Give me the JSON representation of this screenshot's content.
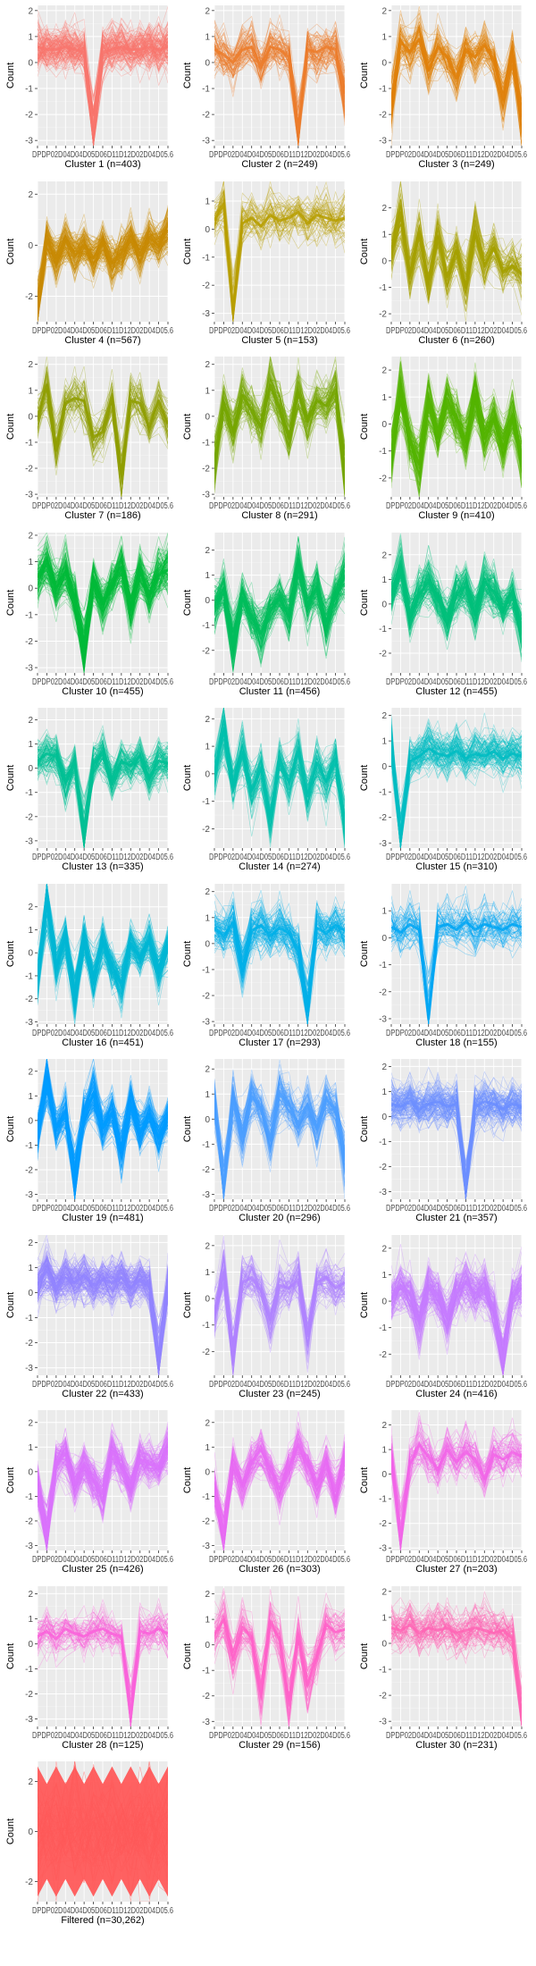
{
  "figure": {
    "ylabel": "Count",
    "x_tick_text": "DPDP02D04D04D05D06D11D12D02D04D05.6"
  },
  "chart_data": [
    {
      "type": "line",
      "title": "Cluster 1 (n=403)",
      "color": "#F8766D",
      "ylim": [
        -3.2,
        2.2
      ],
      "y_ticks": [
        -3,
        -2,
        -1,
        0,
        1,
        2
      ],
      "series_count": 403,
      "mean_profile": [
        0.6,
        0.5,
        0.5,
        0.6,
        0.5,
        0.4,
        -2.7,
        0.4,
        0.5,
        0.6,
        0.5,
        0.5,
        0.6,
        0.5,
        0.6
      ]
    },
    {
      "type": "line",
      "title": "Cluster 2 (n=249)",
      "color": "#EC7C2B",
      "ylim": [
        -3.2,
        2.2
      ],
      "y_ticks": [
        -3,
        -2,
        -1,
        0,
        1,
        2
      ],
      "series_count": 249,
      "mean_profile": [
        0.5,
        0.3,
        0.0,
        0.5,
        0.6,
        -0.2,
        0.6,
        0.5,
        0.2,
        -2.6,
        0.5,
        0.4,
        0.6,
        0.5,
        -1.2
      ]
    },
    {
      "type": "line",
      "title": "Cluster 3 (n=249)",
      "color": "#E0800A",
      "ylim": [
        -3.2,
        2.2
      ],
      "y_ticks": [
        -3,
        -2,
        -1,
        0,
        1,
        2
      ],
      "series_count": 249,
      "mean_profile": [
        -1.6,
        0.8,
        0.4,
        0.9,
        -0.3,
        0.6,
        0.2,
        -0.6,
        0.5,
        0.2,
        0.7,
        0.1,
        -1.4,
        0.3,
        -2.1
      ]
    },
    {
      "type": "line",
      "title": "Cluster 4 (n=567)",
      "color": "#C88A04",
      "ylim": [
        -3.0,
        2.5
      ],
      "y_ticks": [
        -2,
        0,
        2
      ],
      "series_count": 567,
      "mean_profile": [
        -2.6,
        0.2,
        -0.6,
        0.2,
        -0.4,
        0.0,
        -0.5,
        0.1,
        -0.7,
        -0.3,
        0.2,
        -0.4,
        0.3,
        0.0,
        0.6
      ]
    },
    {
      "type": "line",
      "title": "Cluster 5 (n=153)",
      "color": "#B79F00",
      "ylim": [
        -3.3,
        1.7
      ],
      "y_ticks": [
        -3,
        -2,
        -1,
        0,
        1
      ],
      "series_count": 153,
      "mean_profile": [
        0.3,
        0.9,
        -3.0,
        0.2,
        0.4,
        0.1,
        0.5,
        0.3,
        0.4,
        0.6,
        0.2,
        0.5,
        0.4,
        0.3,
        0.4
      ]
    },
    {
      "type": "line",
      "title": "Cluster 6 (n=260)",
      "color": "#A5A000",
      "ylim": [
        -2.3,
        3.0
      ],
      "y_ticks": [
        -2,
        -1,
        0,
        1,
        2
      ],
      "series_count": 260,
      "mean_profile": [
        0.2,
        1.8,
        -0.5,
        1.0,
        -0.8,
        0.9,
        -0.6,
        0.4,
        -1.0,
        1.1,
        -0.2,
        0.5,
        -0.4,
        -0.2,
        -0.5
      ]
    },
    {
      "type": "line",
      "title": "Cluster 7 (n=186)",
      "color": "#8F9E00",
      "ylim": [
        -3.1,
        2.3
      ],
      "y_ticks": [
        -3,
        -2,
        -1,
        0,
        1,
        2
      ],
      "series_count": 186,
      "mean_profile": [
        -0.1,
        1.2,
        -1.3,
        0.5,
        0.7,
        0.6,
        -0.8,
        -0.6,
        0.7,
        -2.3,
        0.6,
        0.5,
        -0.4,
        0.6,
        -0.3
      ]
    },
    {
      "type": "line",
      "title": "Cluster 8 (n=291)",
      "color": "#76A600",
      "ylim": [
        -3.1,
        2.3
      ],
      "y_ticks": [
        -3,
        -2,
        -1,
        0,
        1,
        2
      ],
      "series_count": 291,
      "mean_profile": [
        -1.8,
        0.5,
        -0.6,
        0.8,
        0.2,
        -0.4,
        1.2,
        0.3,
        -0.8,
        0.9,
        -0.2,
        0.6,
        0.4,
        1.0,
        -2.2
      ]
    },
    {
      "type": "line",
      "title": "Cluster 9 (n=410)",
      "color": "#53B400",
      "ylim": [
        -2.7,
        2.5
      ],
      "y_ticks": [
        -2,
        -1,
        0,
        1,
        2
      ],
      "series_count": 410,
      "mean_profile": [
        -1.2,
        1.3,
        -0.6,
        -1.5,
        0.8,
        -0.4,
        0.9,
        0.2,
        -0.6,
        1.1,
        -0.5,
        0.2,
        -0.9,
        0.3,
        -1.3
      ]
    },
    {
      "type": "line",
      "title": "Cluster 10 (n=455)",
      "color": "#00BA38",
      "ylim": [
        -3.2,
        2.1
      ],
      "y_ticks": [
        -3,
        -2,
        -1,
        0,
        1,
        2
      ],
      "series_count": 455,
      "mean_profile": [
        0.4,
        0.9,
        0.0,
        0.6,
        -0.4,
        -2.2,
        0.3,
        -0.6,
        0.1,
        0.8,
        -0.8,
        0.6,
        -0.2,
        0.5,
        0.7
      ]
    },
    {
      "type": "line",
      "title": "Cluster 11 (n=456)",
      "color": "#00BD5C",
      "ylim": [
        -2.9,
        2.7
      ],
      "y_ticks": [
        -2,
        -1,
        0,
        1,
        2
      ],
      "series_count": 456,
      "mean_profile": [
        -0.3,
        0.4,
        -1.8,
        0.1,
        -0.7,
        -1.3,
        -0.4,
        0.1,
        -0.6,
        1.3,
        -0.2,
        0.5,
        -0.9,
        0.2,
        1.0
      ]
    },
    {
      "type": "line",
      "title": "Cluster 12 (n=455)",
      "color": "#00C07A",
      "ylim": [
        -2.8,
        2.9
      ],
      "y_ticks": [
        -2,
        -1,
        0,
        1,
        2
      ],
      "series_count": 455,
      "mean_profile": [
        0.4,
        1.4,
        -0.5,
        0.4,
        0.9,
        0.2,
        -0.6,
        0.4,
        0.7,
        -0.4,
        0.9,
        0.5,
        -0.2,
        0.4,
        -1.2
      ]
    },
    {
      "type": "line",
      "title": "Cluster 13 (n=335)",
      "color": "#00C094",
      "ylim": [
        -3.3,
        2.5
      ],
      "y_ticks": [
        -3,
        -2,
        -1,
        0,
        1,
        2
      ],
      "series_count": 335,
      "mean_profile": [
        0.3,
        0.6,
        0.5,
        -0.6,
        0.2,
        -2.8,
        0.2,
        0.6,
        -0.5,
        0.3,
        0.1,
        0.5,
        -0.4,
        0.3,
        0.2
      ]
    },
    {
      "type": "line",
      "title": "Cluster 14 (n=274)",
      "color": "#00BFAD",
      "ylim": [
        -2.7,
        2.4
      ],
      "y_ticks": [
        -2,
        -1,
        0,
        1,
        2
      ],
      "series_count": 274,
      "mean_profile": [
        0.0,
        1.6,
        -0.4,
        0.8,
        -0.6,
        0.2,
        -1.6,
        0.5,
        -0.3,
        0.8,
        -0.8,
        0.4,
        -0.3,
        0.5,
        -1.8
      ]
    },
    {
      "type": "line",
      "title": "Cluster 15 (n=310)",
      "color": "#00BCC2",
      "ylim": [
        -3.2,
        2.3
      ],
      "y_ticks": [
        -3,
        -2,
        -1,
        0,
        1,
        2
      ],
      "series_count": 310,
      "mean_profile": [
        0.9,
        -2.9,
        0.2,
        0.4,
        0.7,
        0.5,
        0.4,
        0.6,
        0.3,
        0.5,
        0.4,
        0.6,
        0.3,
        0.5,
        0.4
      ]
    },
    {
      "type": "line",
      "title": "Cluster 16 (n=451)",
      "color": "#00B6D5",
      "ylim": [
        -3.1,
        3.0
      ],
      "y_ticks": [
        -3,
        -2,
        -1,
        0,
        1,
        2
      ],
      "series_count": 451,
      "mean_profile": [
        -1.2,
        2.3,
        -0.6,
        0.7,
        -1.9,
        0.6,
        -1.1,
        0.5,
        -0.6,
        -1.3,
        0.4,
        -0.2,
        0.5,
        -0.8,
        0.3
      ]
    },
    {
      "type": "line",
      "title": "Cluster 17 (n=293)",
      "color": "#00B0E8",
      "ylim": [
        -3.1,
        2.3
      ],
      "y_ticks": [
        -3,
        -2,
        -1,
        0,
        1,
        2
      ],
      "series_count": 293,
      "mean_profile": [
        0.6,
        0.3,
        0.8,
        -1.0,
        0.5,
        0.7,
        0.3,
        0.6,
        0.4,
        -0.3,
        -2.6,
        0.6,
        0.4,
        0.7,
        0.5
      ]
    },
    {
      "type": "line",
      "title": "Cluster 18 (n=155)",
      "color": "#00A6F3",
      "ylim": [
        -3.2,
        2.0
      ],
      "y_ticks": [
        -3,
        -2,
        -1,
        0,
        1
      ],
      "series_count": 155,
      "mean_profile": [
        0.4,
        0.2,
        0.5,
        0.3,
        -3.0,
        0.4,
        0.5,
        0.3,
        0.6,
        0.3,
        0.5,
        0.4,
        0.3,
        0.5,
        0.4
      ]
    },
    {
      "type": "line",
      "title": "Cluster 19 (n=481)",
      "color": "#009CFF",
      "ylim": [
        -3.2,
        2.5
      ],
      "y_ticks": [
        -3,
        -2,
        -1,
        0,
        1,
        2
      ],
      "series_count": 481,
      "mean_profile": [
        -0.6,
        1.6,
        -0.3,
        0.2,
        -2.4,
        0.2,
        1.1,
        -0.3,
        0.3,
        -1.2,
        0.7,
        -0.5,
        0.2,
        -0.7,
        0.2
      ]
    },
    {
      "type": "line",
      "title": "Cluster 20 (n=296)",
      "color": "#4B9FFF",
      "ylim": [
        -3.2,
        2.4
      ],
      "y_ticks": [
        -3,
        -2,
        -1,
        0,
        1,
        2
      ],
      "series_count": 296,
      "mean_profile": [
        0.7,
        -2.7,
        0.8,
        -0.7,
        0.9,
        0.4,
        -0.8,
        1.0,
        0.6,
        -0.2,
        0.6,
        -0.4,
        0.8,
        0.4,
        -1.6
      ]
    },
    {
      "type": "line",
      "title": "Cluster 21 (n=357)",
      "color": "#6C8EFF",
      "ylim": [
        -3.3,
        2.3
      ],
      "y_ticks": [
        -3,
        -2,
        -1,
        0,
        1,
        2
      ],
      "series_count": 357,
      "mean_profile": [
        0.5,
        0.4,
        0.6,
        0.3,
        0.5,
        0.6,
        0.4,
        0.5,
        -2.9,
        0.4,
        0.6,
        0.5,
        0.3,
        0.5,
        0.4
      ]
    },
    {
      "type": "line",
      "title": "Cluster 22 (n=433)",
      "color": "#9285FF",
      "ylim": [
        -3.3,
        2.3
      ],
      "y_ticks": [
        -3,
        -2,
        -1,
        0,
        1,
        2
      ],
      "series_count": 433,
      "mean_profile": [
        0.3,
        0.9,
        0.2,
        0.6,
        0.4,
        0.7,
        0.3,
        0.5,
        0.4,
        0.6,
        0.2,
        0.5,
        0.3,
        -2.8,
        0.4
      ]
    },
    {
      "type": "line",
      "title": "Cluster 23 (n=245)",
      "color": "#B083FF",
      "ylim": [
        -2.9,
        2.4
      ],
      "y_ticks": [
        -2,
        -1,
        0,
        1,
        2
      ],
      "series_count": 245,
      "mean_profile": [
        -0.6,
        1.0,
        -2.1,
        0.6,
        0.8,
        0.3,
        -0.8,
        0.5,
        0.4,
        0.7,
        -1.4,
        0.6,
        0.8,
        0.4,
        0.6
      ]
    },
    {
      "type": "line",
      "title": "Cluster 24 (n=416)",
      "color": "#C77CFF",
      "ylim": [
        -2.8,
        2.5
      ],
      "y_ticks": [
        -2,
        -1,
        0,
        1,
        2
      ],
      "series_count": 416,
      "mean_profile": [
        0.1,
        0.6,
        0.3,
        -0.8,
        0.5,
        0.2,
        -0.6,
        0.4,
        0.7,
        0.3,
        0.5,
        -0.3,
        -2.3,
        0.2,
        0.5
      ]
    },
    {
      "type": "line",
      "title": "Cluster 25 (n=426)",
      "color": "#DB72FB",
      "ylim": [
        -3.2,
        2.5
      ],
      "y_ticks": [
        -3,
        -2,
        -1,
        0,
        1,
        2
      ],
      "series_count": 426,
      "mean_profile": [
        -0.6,
        -2.6,
        0.4,
        0.7,
        -0.5,
        0.3,
        -0.4,
        -0.9,
        0.8,
        0.2,
        -0.6,
        0.5,
        0.3,
        0.2,
        0.9
      ]
    },
    {
      "type": "line",
      "title": "Cluster 26 (n=303)",
      "color": "#E76BF3",
      "ylim": [
        -3.2,
        2.5
      ],
      "y_ticks": [
        -3,
        -2,
        -1,
        0,
        1,
        2
      ],
      "series_count": 303,
      "mean_profile": [
        -0.7,
        -2.5,
        0.3,
        -0.6,
        0.4,
        0.9,
        0.1,
        -0.7,
        0.2,
        1.1,
        0.3,
        -0.5,
        0.4,
        -0.8,
        0.6
      ]
    },
    {
      "type": "line",
      "title": "Cluster 27 (n=203)",
      "color": "#F265E7",
      "ylim": [
        -3.1,
        2.6
      ],
      "y_ticks": [
        -3,
        -2,
        -1,
        0,
        1,
        2
      ],
      "series_count": 203,
      "mean_profile": [
        0.8,
        -2.6,
        0.4,
        1.2,
        0.7,
        0.2,
        1.0,
        0.5,
        0.9,
        0.6,
        -0.2,
        0.8,
        0.6,
        0.9,
        0.7
      ]
    },
    {
      "type": "line",
      "title": "Cluster 28 (n=125)",
      "color": "#FA62DB",
      "ylim": [
        -3.3,
        2.3
      ],
      "y_ticks": [
        -3,
        -2,
        -1,
        0,
        1,
        2
      ],
      "series_count": 125,
      "mean_profile": [
        0.3,
        0.5,
        0.2,
        0.6,
        0.4,
        0.3,
        0.5,
        0.6,
        0.4,
        0.3,
        -2.9,
        0.5,
        0.4,
        0.6,
        0.4
      ]
    },
    {
      "type": "line",
      "title": "Cluster 29 (n=156)",
      "color": "#FF61C9",
      "ylim": [
        -3.2,
        2.3
      ],
      "y_ticks": [
        -3,
        -2,
        -1,
        0,
        1,
        2
      ],
      "series_count": 156,
      "mean_profile": [
        0.4,
        1.0,
        -0.6,
        0.7,
        0.3,
        -1.9,
        0.9,
        0.2,
        -2.2,
        0.4,
        -1.6,
        -0.4,
        0.8,
        0.5,
        0.6
      ]
    },
    {
      "type": "line",
      "title": "Cluster 30 (n=231)",
      "color": "#FF65B5",
      "ylim": [
        -3.2,
        2.2
      ],
      "y_ticks": [
        -3,
        -2,
        -1,
        0,
        1,
        2
      ],
      "series_count": 231,
      "mean_profile": [
        0.6,
        0.5,
        0.7,
        0.4,
        0.6,
        0.5,
        0.6,
        0.4,
        0.5,
        0.6,
        0.5,
        0.4,
        0.5,
        0.2,
        -3.0
      ]
    },
    {
      "type": "line",
      "title": "Filtered (n=30,262)",
      "color": "#FF5A5A",
      "ylim": [
        -2.8,
        2.8
      ],
      "y_ticks": [
        -2,
        0,
        2
      ],
      "series_count": 30262,
      "mean_profile": [
        0,
        0,
        0,
        0,
        0,
        0,
        0,
        0,
        0,
        0,
        0,
        0,
        0,
        0,
        0
      ],
      "band_half_width": [
        2.6,
        1.9,
        2.6,
        1.9,
        2.6,
        1.9,
        2.6,
        1.9,
        2.6,
        1.9,
        2.6,
        1.9,
        2.6,
        1.9,
        2.6
      ]
    }
  ]
}
